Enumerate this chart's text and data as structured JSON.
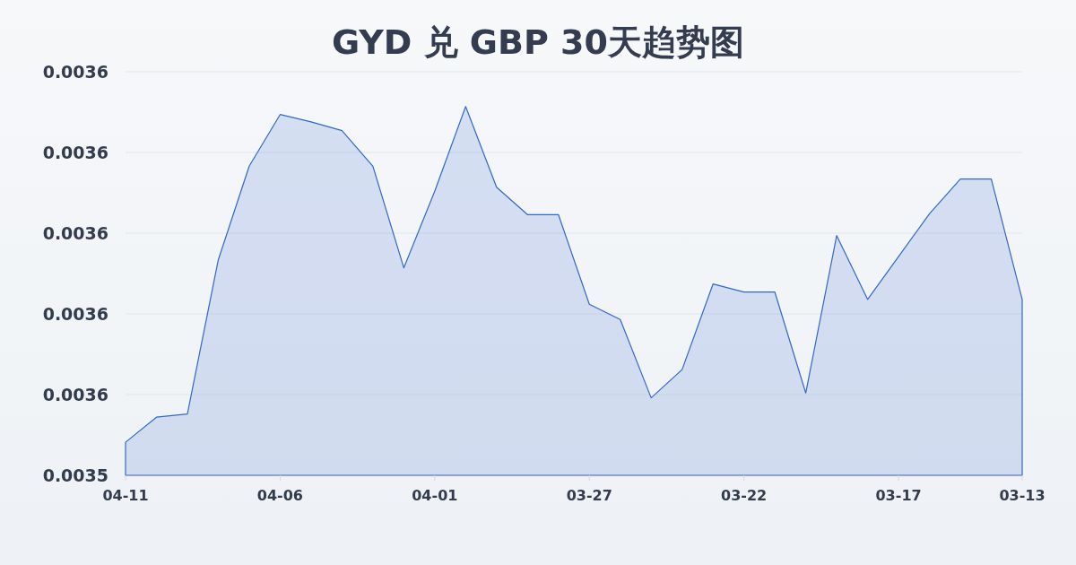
{
  "chart_data": {
    "type": "area",
    "title": "GYD 兑 GBP 30天趋势图",
    "categories": [
      "04-11",
      null,
      null,
      null,
      null,
      "04-06",
      null,
      null,
      null,
      null,
      "04-01",
      null,
      null,
      null,
      null,
      "03-27",
      null,
      null,
      null,
      null,
      "03-22",
      null,
      null,
      null,
      null,
      "03-17",
      null,
      null,
      null,
      "03-13"
    ],
    "series": [
      {
        "color": "#3366cc",
        "values": [
          0.0035441,
          0.0035472,
          0.0035476,
          0.0035667,
          0.0035783,
          0.0035847,
          0.0035838,
          0.0035827,
          0.0035783,
          0.0035657,
          0.0035752,
          0.0035857,
          0.0035757,
          0.0035723,
          0.0035723,
          0.0035612,
          0.0035593,
          0.0035496,
          0.0035531,
          0.0035637,
          0.0035627,
          0.0035627,
          0.0035502,
          0.0035697,
          0.0035618,
          0.0035671,
          0.0035724,
          0.0035767,
          0.0035767,
          0.0035618
        ]
      }
    ],
    "ylim": [
      0.00354,
      0.00359
    ],
    "yticks": [
      {
        "value": 0.00354,
        "label": "0.0035"
      },
      {
        "value": 0.00355,
        "label": "0.0036"
      },
      {
        "value": 0.00356,
        "label": "0.0036"
      },
      {
        "value": 0.00357,
        "label": "0.0036"
      },
      {
        "value": 0.00358,
        "label": "0.0036"
      },
      {
        "value": 0.00359,
        "label": "0.0036"
      }
    ],
    "grid": "y"
  }
}
